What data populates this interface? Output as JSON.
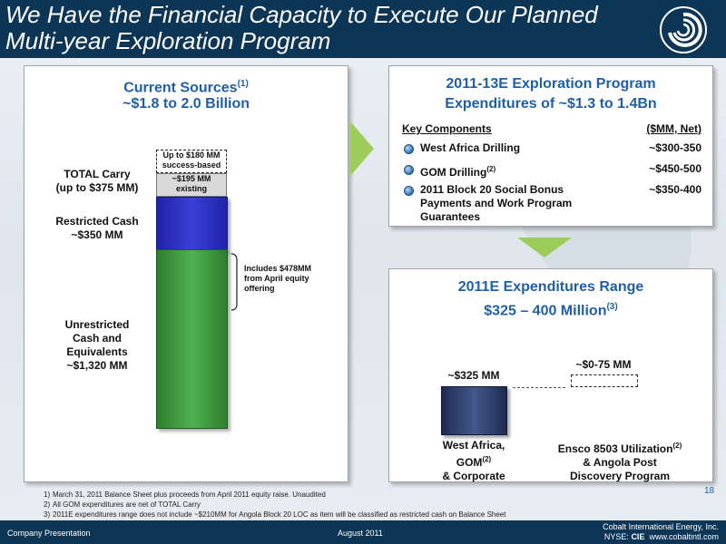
{
  "header": {
    "title_line1": "We Have the Financial Capacity to Execute Our Planned",
    "title_line2": "Multi-year Exploration Program"
  },
  "left_panel": {
    "title": "Current Sources",
    "title_sup": "(1)",
    "subtitle": "~$1.8 to 2.0 Billion",
    "total_carry_line1": "TOTAL Carry",
    "total_carry_line2": "(up to $375 MM)",
    "restricted_line1": "Restricted Cash",
    "restricted_line2": "~$350 MM",
    "unrestricted_line1": "Unrestricted",
    "unrestricted_line2": "Cash and",
    "unrestricted_line3": "Equivalents",
    "unrestricted_line4": "~$1,320 MM",
    "success_line1": "Up to $180 MM",
    "success_line2": "success-based",
    "existing_line1": "~$195 MM",
    "existing_line2": "existing",
    "includes_line1": "Includes $478MM",
    "includes_line2": "from April equity",
    "includes_line3": "offering",
    "stack_mm": {
      "unrestricted": 1320,
      "restricted": 350,
      "carry_existing": 195,
      "carry_success_up_to": 180
    }
  },
  "program_panel": {
    "title_line1": "2011-13E Exploration Program",
    "title_line2": "Expenditures of ~$1.3 to 1.4Bn",
    "col_header_left": "Key Components",
    "col_header_right": "($MM, Net)",
    "items": [
      {
        "label": "West Africa Drilling",
        "sup": "",
        "value": "~$300-350"
      },
      {
        "label": "GOM Drilling",
        "sup": "(2)",
        "value": "~$450-500"
      },
      {
        "label_line1": "2011 Block 20 Social Bonus",
        "label_line2": "Payments and Work Program",
        "label_line3": "Guarantees",
        "value": "~$350-400"
      }
    ]
  },
  "expenditure_panel": {
    "title_line1": "2011E Expenditures Range",
    "title_line2": "$325 – 400 Million",
    "title_sup": "(3)",
    "bar1_label": "~$325 MM",
    "bar2_label": "~$0-75 MM",
    "cat1_line1": "West Africa,",
    "cat1_line2": "GOM",
    "cat1_sup": "(2)",
    "cat1_line3": "& Corporate",
    "cat2_line1": "Ensco 8503 Utilization",
    "cat2_sup": "(2)",
    "cat2_line2": "& Angola Post",
    "cat2_line3": "Discovery Program",
    "values_mm": {
      "base": 325,
      "additional_low": 0,
      "additional_high": 75
    }
  },
  "page_number": "18",
  "footnotes": [
    {
      "num": "1)",
      "text": "March 31, 2011 Balance Sheet plus proceeds from April 2011 equity raise.  Unaudited"
    },
    {
      "num": "2)",
      "text": "All GOM expenditures are net of TOTAL Carry"
    },
    {
      "num": "3)",
      "text": "2011E expenditures range does not include ~$210MM for Angola Block 20 LOC as item will be classified as restricted cash on Balance Sheet"
    }
  ],
  "footer": {
    "left": "Company Presentation",
    "center": "August 2011",
    "company": "Cobalt International Energy, Inc.",
    "nyse_prefix": "NYSE: ",
    "ticker": "CIE",
    "website": "www.cobaltintl.com"
  },
  "colors": {
    "navy": "#0d3556",
    "title_blue": "#1f5fa8",
    "green_bar": "#3a9a3a",
    "blue_bar": "#2b2fbf",
    "arrow_green": "#9ccc5a"
  }
}
